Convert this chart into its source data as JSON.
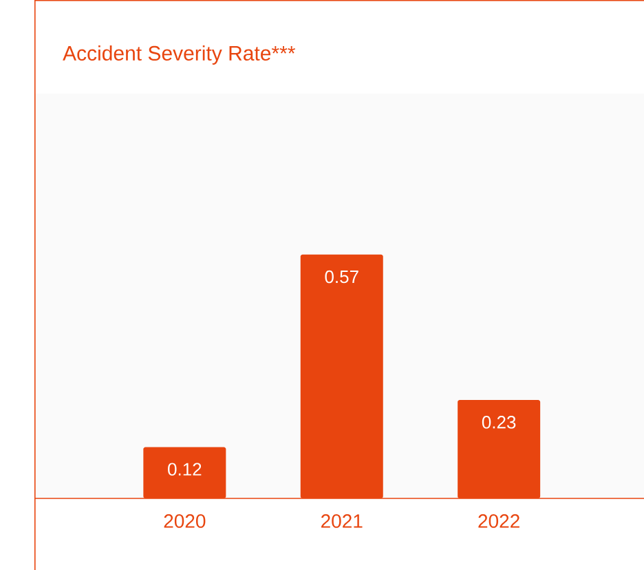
{
  "chart_data": {
    "type": "bar",
    "title": "Accident Severity Rate***",
    "categories": [
      "2020",
      "2021",
      "2022"
    ],
    "values": [
      0.12,
      0.57,
      0.23
    ],
    "color": "#e8450f",
    "data_labels": true
  }
}
